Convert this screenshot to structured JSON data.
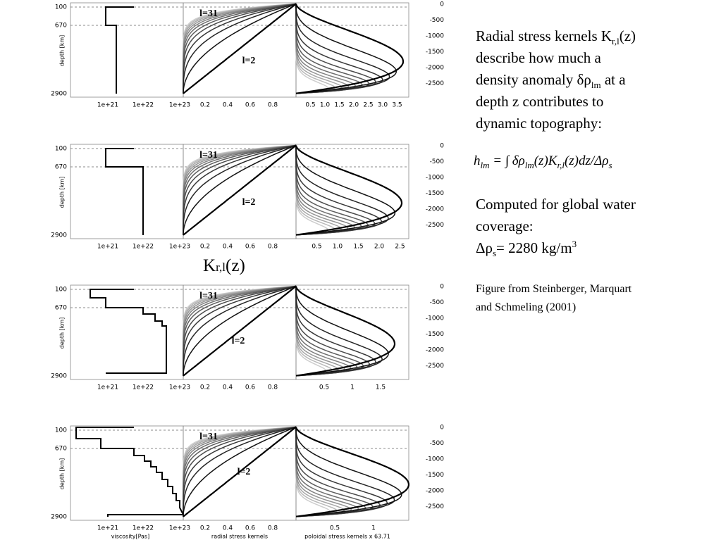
{
  "figure": {
    "panels": [
      {
        "depth_ticks": [
          "100",
          "670",
          "2900"
        ],
        "viscosity_ticks": [
          "1e+21",
          "1e+22",
          "1e+23"
        ],
        "radial_ticks": [
          "0.2",
          "0.4",
          "0.6",
          "0.8"
        ],
        "poloidal_ticks": [
          "0.5",
          "1.0",
          "1.5",
          "2.0",
          "2.5",
          "3.0",
          "3.5"
        ],
        "right_ticks": [
          "0",
          "-500",
          "-1000",
          "-1500",
          "-2000",
          "-2500"
        ],
        "label_high": "l=31",
        "label_low": "l=2",
        "depth_title": "depth [km]"
      },
      {
        "depth_ticks": [
          "100",
          "670",
          "2900"
        ],
        "viscosity_ticks": [
          "1e+21",
          "1e+22",
          "1e+23"
        ],
        "radial_ticks": [
          "0.2",
          "0.4",
          "0.6",
          "0.8"
        ],
        "poloidal_ticks": [
          "0.5",
          "1.0",
          "1.5",
          "2.0",
          "2.5"
        ],
        "right_ticks": [
          "0",
          "-500",
          "-1000",
          "-1500",
          "-2000",
          "-2500"
        ],
        "label_high": "l=31",
        "label_low": "l=2",
        "depth_title": "depth [km]"
      },
      {
        "depth_ticks": [
          "100",
          "670",
          "2900"
        ],
        "viscosity_ticks": [
          "1e+21",
          "1e+22",
          "1e+23"
        ],
        "radial_ticks": [
          "0.2",
          "0.4",
          "0.6",
          "0.8"
        ],
        "poloidal_ticks": [
          "0.5",
          "1",
          "1.5"
        ],
        "right_ticks": [
          "0",
          "-500",
          "-1000",
          "-1500",
          "-2000",
          "-2500"
        ],
        "label_high": "l=31",
        "label_low": "l=2",
        "depth_title": "depth [km]"
      },
      {
        "depth_ticks": [
          "100",
          "670",
          "2900"
        ],
        "viscosity_ticks": [
          "1e+21",
          "1e+22",
          "1e+23"
        ],
        "radial_ticks": [
          "0.2",
          "0.4",
          "0.6",
          "0.8"
        ],
        "poloidal_ticks": [
          "0.5",
          "1"
        ],
        "right_ticks": [
          "0",
          "-500",
          "-1000",
          "-1500",
          "-2000",
          "-2500"
        ],
        "label_high": "l=31",
        "label_low": "l=2",
        "depth_title": "depth [km]"
      }
    ],
    "axis_titles": [
      "viscosity[Pas]",
      "radial stress kernels",
      "poloidal stress kernels x 63.71"
    ],
    "kernel_label": [
      "K",
      "r,l",
      "(z)"
    ]
  },
  "text": {
    "description": [
      [
        "Radial stress kernels K",
        "r,l",
        "(z)"
      ],
      [
        "describe how much a"
      ],
      [
        "density anomaly δρ",
        "lm",
        " at a"
      ],
      [
        "depth z contributes to"
      ],
      [
        "dynamic topography:"
      ]
    ],
    "formula": [
      "h",
      "lm",
      " = ∫ δρ",
      "lm",
      "(z)K",
      "r,l",
      "(z)dz/Δρ",
      "s"
    ],
    "computed": [
      [
        "Computed for global water"
      ],
      [
        "coverage:"
      ],
      [
        "Δρ",
        "s",
        "= 2280 kg/m",
        "3"
      ]
    ],
    "credit": [
      "Figure from Steinberger, Marquart",
      "and Schmeling (2001)"
    ]
  }
}
